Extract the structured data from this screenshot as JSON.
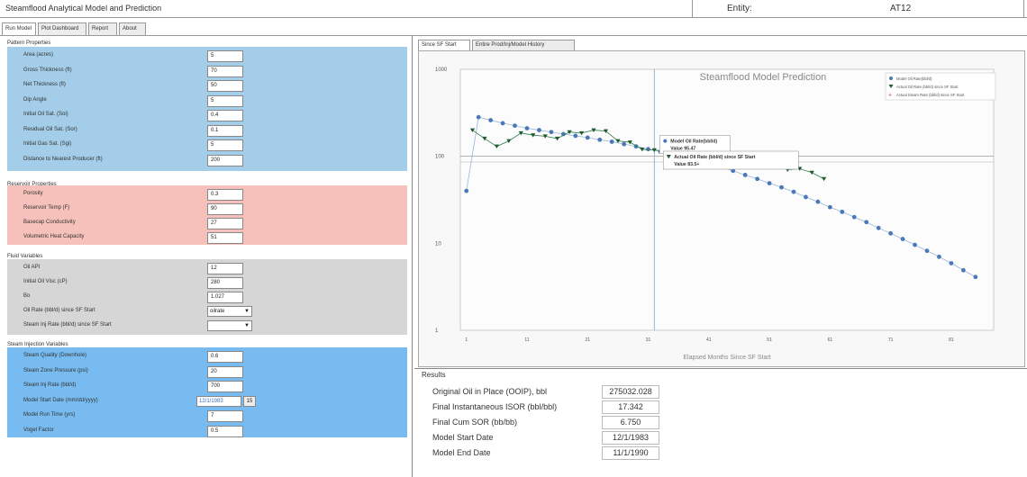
{
  "app": {
    "title": "Steamflood Analytical Model and Prediction",
    "entity_label": "Entity:",
    "entity_value": "AT12"
  },
  "tabs": [
    "Run Model",
    "Plot Dashboard",
    "Report",
    "About"
  ],
  "sections": [
    {
      "title": "Pattern Properties",
      "color": "#a3cde8",
      "rows": [
        {
          "label": "Area (acres)",
          "value": "5"
        },
        {
          "label": "Gross Thickness (ft)",
          "value": "70"
        },
        {
          "label": "Net Thickness (ft)",
          "value": "50"
        },
        {
          "label": "Dip Angle",
          "value": "5"
        },
        {
          "label": "Initial Oil Sat. (Soi)",
          "value": "0.4"
        },
        {
          "label": "Residual Oil Sat. (Sor)",
          "value": "0.1"
        },
        {
          "label": "Initial Gas Sat. (Sgi)",
          "value": "5"
        },
        {
          "label": "Distance to Nearest Producer (ft)",
          "value": "200"
        }
      ]
    },
    {
      "title": "Reservoir Properties",
      "color": "#f6c1ba",
      "rows": [
        {
          "label": "Porosity",
          "value": "0.3"
        },
        {
          "label": "Reservoir Temp (F)",
          "value": "90"
        },
        {
          "label": "Basecap Conductivity",
          "value": "27"
        },
        {
          "label": "Volumetric Heat Capacity",
          "value": "51"
        }
      ]
    },
    {
      "title": "Fluid Variables",
      "color": "#d6d6d6",
      "rows": [
        {
          "label": "Oil API",
          "value": "12"
        },
        {
          "label": "Initial Oil Visc (cP)",
          "value": "280"
        },
        {
          "label": "Bo",
          "value": "1.027"
        },
        {
          "label": "Oil Rate (bbl/d) since SF Start",
          "value": "oilrate",
          "select": true
        },
        {
          "label": "Steam Inj Rate (bbl/d) since SF Start",
          "value": "",
          "select": true
        }
      ]
    },
    {
      "title": "Steam Injection Variables",
      "color": "#77bbf0",
      "rows": [
        {
          "label": "Steam Quality (Downhole)",
          "value": "0.6"
        },
        {
          "label": "Steam Zone Pressure (psi)",
          "value": "20"
        },
        {
          "label": "Steam Inj Rate (bbl/d)",
          "value": "700"
        },
        {
          "label": "Model Start Date (mm/dd/yyyy)",
          "value": "12/1/1983",
          "date": true
        },
        {
          "label": "Model Run Time (yrs)",
          "value": "7"
        },
        {
          "label": "Vogel Factor",
          "value": "0.5"
        }
      ]
    }
  ],
  "chart_tabs": [
    "Since SF Start",
    "Entire Prod/Inj/Model History"
  ],
  "chart_data": {
    "type": "line",
    "title": "Steamflood Model Prediction",
    "xlabel": "Elapsed Months Since SF Start",
    "ylabel": "",
    "y_scale": "log",
    "ylim": [
      1,
      1000
    ],
    "xlim": [
      0,
      88
    ],
    "x_ticks": [
      "1",
      "11",
      "21",
      "31",
      "41",
      "51",
      "61",
      "71",
      "81"
    ],
    "y_ticks": [
      "1000",
      "100",
      "10",
      "1"
    ],
    "series": [
      {
        "name": "Model Oil Rate(bbl/d)",
        "color": "#4a78b8",
        "x": [
          1,
          3,
          5,
          7,
          9,
          11,
          13,
          15,
          17,
          19,
          21,
          23,
          25,
          27,
          29,
          31,
          33,
          35,
          37,
          39,
          41,
          43,
          45,
          47,
          49,
          51,
          53,
          55,
          57,
          59,
          61,
          63,
          65,
          67,
          69,
          71,
          73,
          75,
          77,
          79,
          81,
          83,
          85
        ],
        "values": [
          40,
          282,
          260,
          240,
          225,
          210,
          200,
          190,
          180,
          172,
          164,
          155,
          147,
          138,
          130,
          121,
          113,
          105,
          97,
          89,
          82,
          75,
          68,
          61,
          55,
          49,
          44,
          39,
          34,
          30,
          26,
          23,
          20,
          17.5,
          15,
          13,
          11.2,
          9.6,
          8.2,
          7,
          5.9,
          4.9,
          4.1
        ]
      },
      {
        "name": "Actual Oil Rate (bbl/d) since SF Start",
        "color": "#1f5a32",
        "x": [
          2,
          4,
          6,
          8,
          10,
          12,
          14,
          16,
          18,
          20,
          22,
          24,
          26,
          28,
          30,
          32,
          34,
          36,
          38,
          40,
          42,
          44,
          46,
          48,
          50,
          52,
          54,
          56,
          58,
          60
        ],
        "values": [
          200,
          160,
          130,
          150,
          185,
          175,
          170,
          160,
          190,
          185,
          200,
          195,
          150,
          145,
          120,
          118,
          115,
          112,
          88,
          86,
          100,
          95,
          90,
          92,
          88,
          80,
          70,
          72,
          65,
          55
        ]
      },
      {
        "name": "Actual Steam Rate (bbl/d) since SF Start",
        "color": "#d94040",
        "x": [],
        "values": []
      }
    ],
    "tooltips": [
      {
        "title": "Model Oil Rate(bbl/d)",
        "value": "Value 95.47"
      },
      {
        "title": "Actual Oil Rate (bbl/d) since SF Start",
        "value": "Value 83.5+"
      }
    ],
    "legend_position": "top-right",
    "grid": false
  },
  "results": {
    "title": "Results",
    "rows": [
      {
        "label": "Original Oil in Place (OOIP), bbl",
        "value": "275032.028"
      },
      {
        "label": "Final Instantaneous ISOR (bbl/bbl)",
        "value": "17.342"
      },
      {
        "label": "Final Cum SOR (bb/bb)",
        "value": "6.750"
      },
      {
        "label": "Model Start Date",
        "value": "12/1/1983"
      },
      {
        "label": "Model End Date",
        "value": "11/1/1990"
      }
    ]
  }
}
